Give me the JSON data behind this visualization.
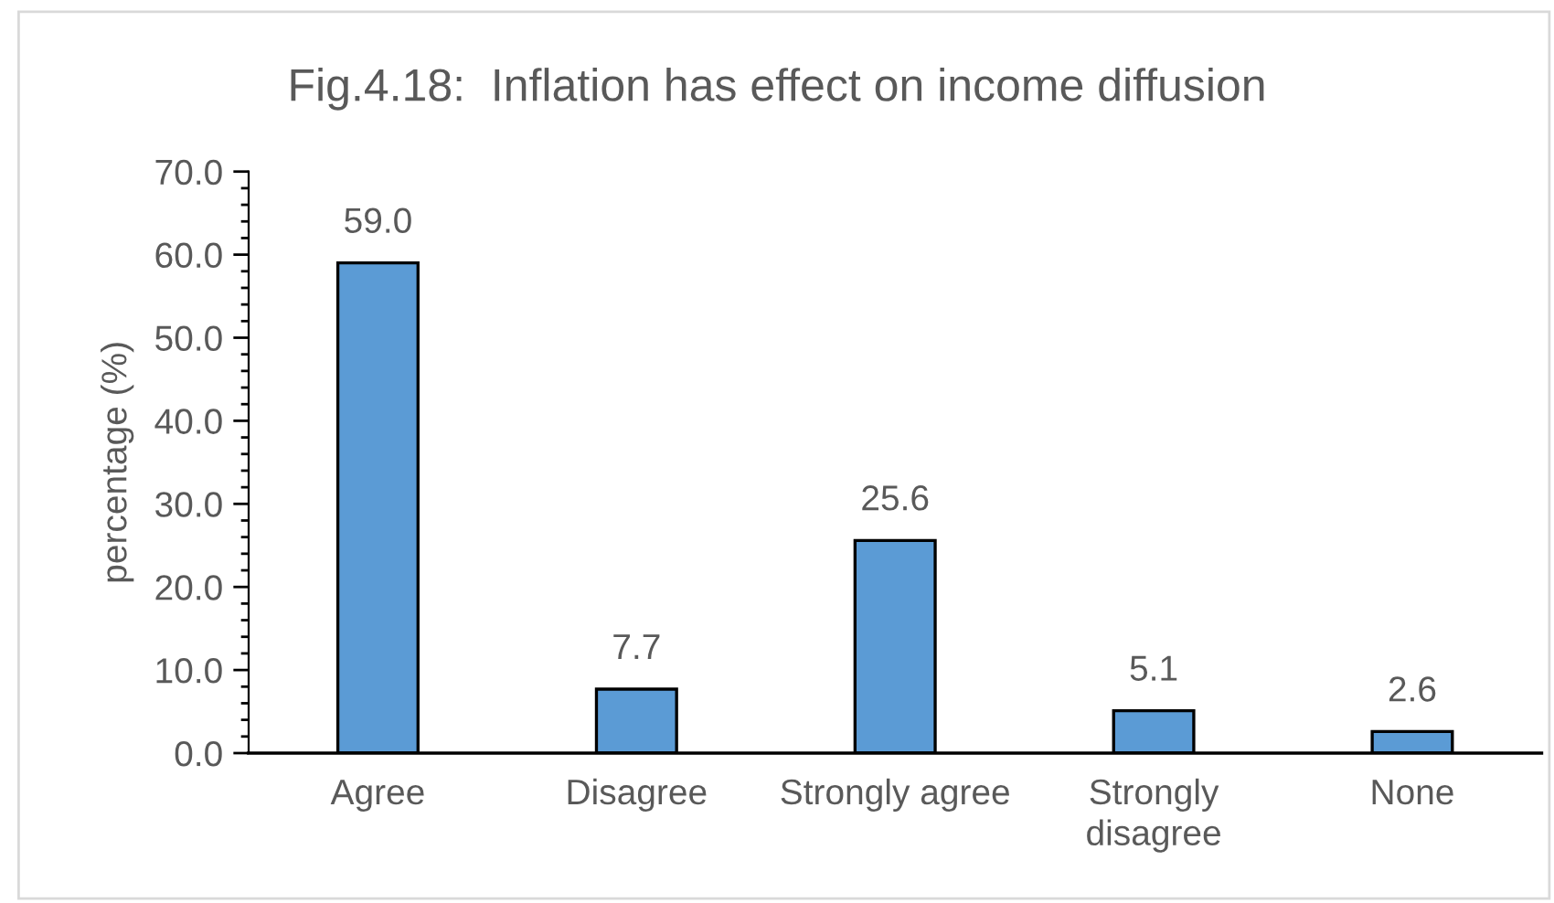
{
  "chart_data": {
    "type": "bar",
    "title": "Fig.4.18:  Inflation has effect on income diffusion",
    "ylabel": "percentage (%)",
    "categories": [
      "Agree",
      "Disagree",
      "Strongly agree",
      "Strongly disagree",
      "None"
    ],
    "values": [
      59.0,
      7.7,
      25.6,
      5.1,
      2.6
    ],
    "value_labels": [
      "59.0",
      "7.7",
      "25.6",
      "5.1",
      "2.6"
    ],
    "color": "#5b9bd5",
    "ylim": [
      0,
      70
    ],
    "yticks": [
      {
        "value": 0,
        "label": "0.0"
      },
      {
        "value": 10,
        "label": "10.0"
      },
      {
        "value": 20,
        "label": "20.0"
      },
      {
        "value": 30,
        "label": "30.0"
      },
      {
        "value": 40,
        "label": "40.0"
      },
      {
        "value": 50,
        "label": "50.0"
      },
      {
        "value": 60,
        "label": "60.0"
      },
      {
        "value": 70,
        "label": "70.0"
      }
    ],
    "grid": false,
    "legend": false
  }
}
